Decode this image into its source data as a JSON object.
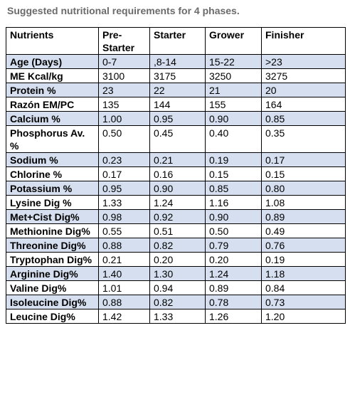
{
  "caption": "Suggested nutritional requirements for 4 phases.",
  "headers": [
    "Nutrients",
    "Pre-\nStarter",
    "Starter",
    "Grower",
    "Finisher"
  ],
  "rows": [
    {
      "label": "Age (Days)",
      "values": [
        "0-7",
        ",8-14",
        "15-22",
        ">23"
      ],
      "shaded": true
    },
    {
      "label": "ME Kcal/kg",
      "values": [
        "3100",
        "3175",
        "3250",
        "3275"
      ],
      "shaded": false
    },
    {
      "label": "Protein %",
      "values": [
        "23",
        "22",
        "21",
        "20"
      ],
      "shaded": true
    },
    {
      "label": "Razón EM/PC",
      "values": [
        "135",
        "144",
        "155",
        "164"
      ],
      "shaded": false
    },
    {
      "label": "Calcium %",
      "values": [
        "1.00",
        "0.95",
        "0.90",
        "0.85"
      ],
      "shaded": true
    },
    {
      "label": "Phosphorus Av. %",
      "values": [
        "0.50",
        "0.45",
        "0.40",
        "0.35"
      ],
      "shaded": false
    },
    {
      "label": "Sodium %",
      "values": [
        "0.23",
        "0.21",
        "0.19",
        "0.17"
      ],
      "shaded": true
    },
    {
      "label": "Chlorine %",
      "values": [
        "0.17",
        "0.16",
        "0.15",
        "0.15"
      ],
      "shaded": false
    },
    {
      "label": "Potassium %",
      "values": [
        "0.95",
        "0.90",
        "0.85",
        "0.80"
      ],
      "shaded": true
    },
    {
      "label": "Lysine Dig %",
      "values": [
        "1.33",
        "1.24",
        "1.16",
        "1.08"
      ],
      "shaded": false
    },
    {
      "label": "Met+Cist Dig%",
      "values": [
        "0.98",
        "0.92",
        "0.90",
        "0.89"
      ],
      "shaded": true
    },
    {
      "label": "Methionine Dig%",
      "values": [
        "0.55",
        "0.51",
        "0.50",
        "0.49"
      ],
      "shaded": false
    },
    {
      "label": "Threonine Dig%",
      "values": [
        "0.88",
        "0.82",
        "0.79",
        "0.76"
      ],
      "shaded": true
    },
    {
      "label": "Tryptophan Dig%",
      "values": [
        "0.21",
        "0.20",
        "0.20",
        "0.19"
      ],
      "shaded": false
    },
    {
      "label": "Arginine Dig%",
      "values": [
        "1.40",
        "1.30",
        "1.24",
        "1.18"
      ],
      "shaded": true
    },
    {
      "label": "Valine Dig%",
      "values": [
        "1.01",
        "0.94",
        "0.89",
        "0.84"
      ],
      "shaded": false
    },
    {
      "label": "Isoleucine Dig%",
      "values": [
        "0.88",
        "0.82",
        "0.78",
        "0.73"
      ],
      "shaded": true
    },
    {
      "label": "Leucine Dig%",
      "values": [
        "1.42",
        "1.33",
        "1.26",
        "1.20"
      ],
      "shaded": false
    }
  ]
}
